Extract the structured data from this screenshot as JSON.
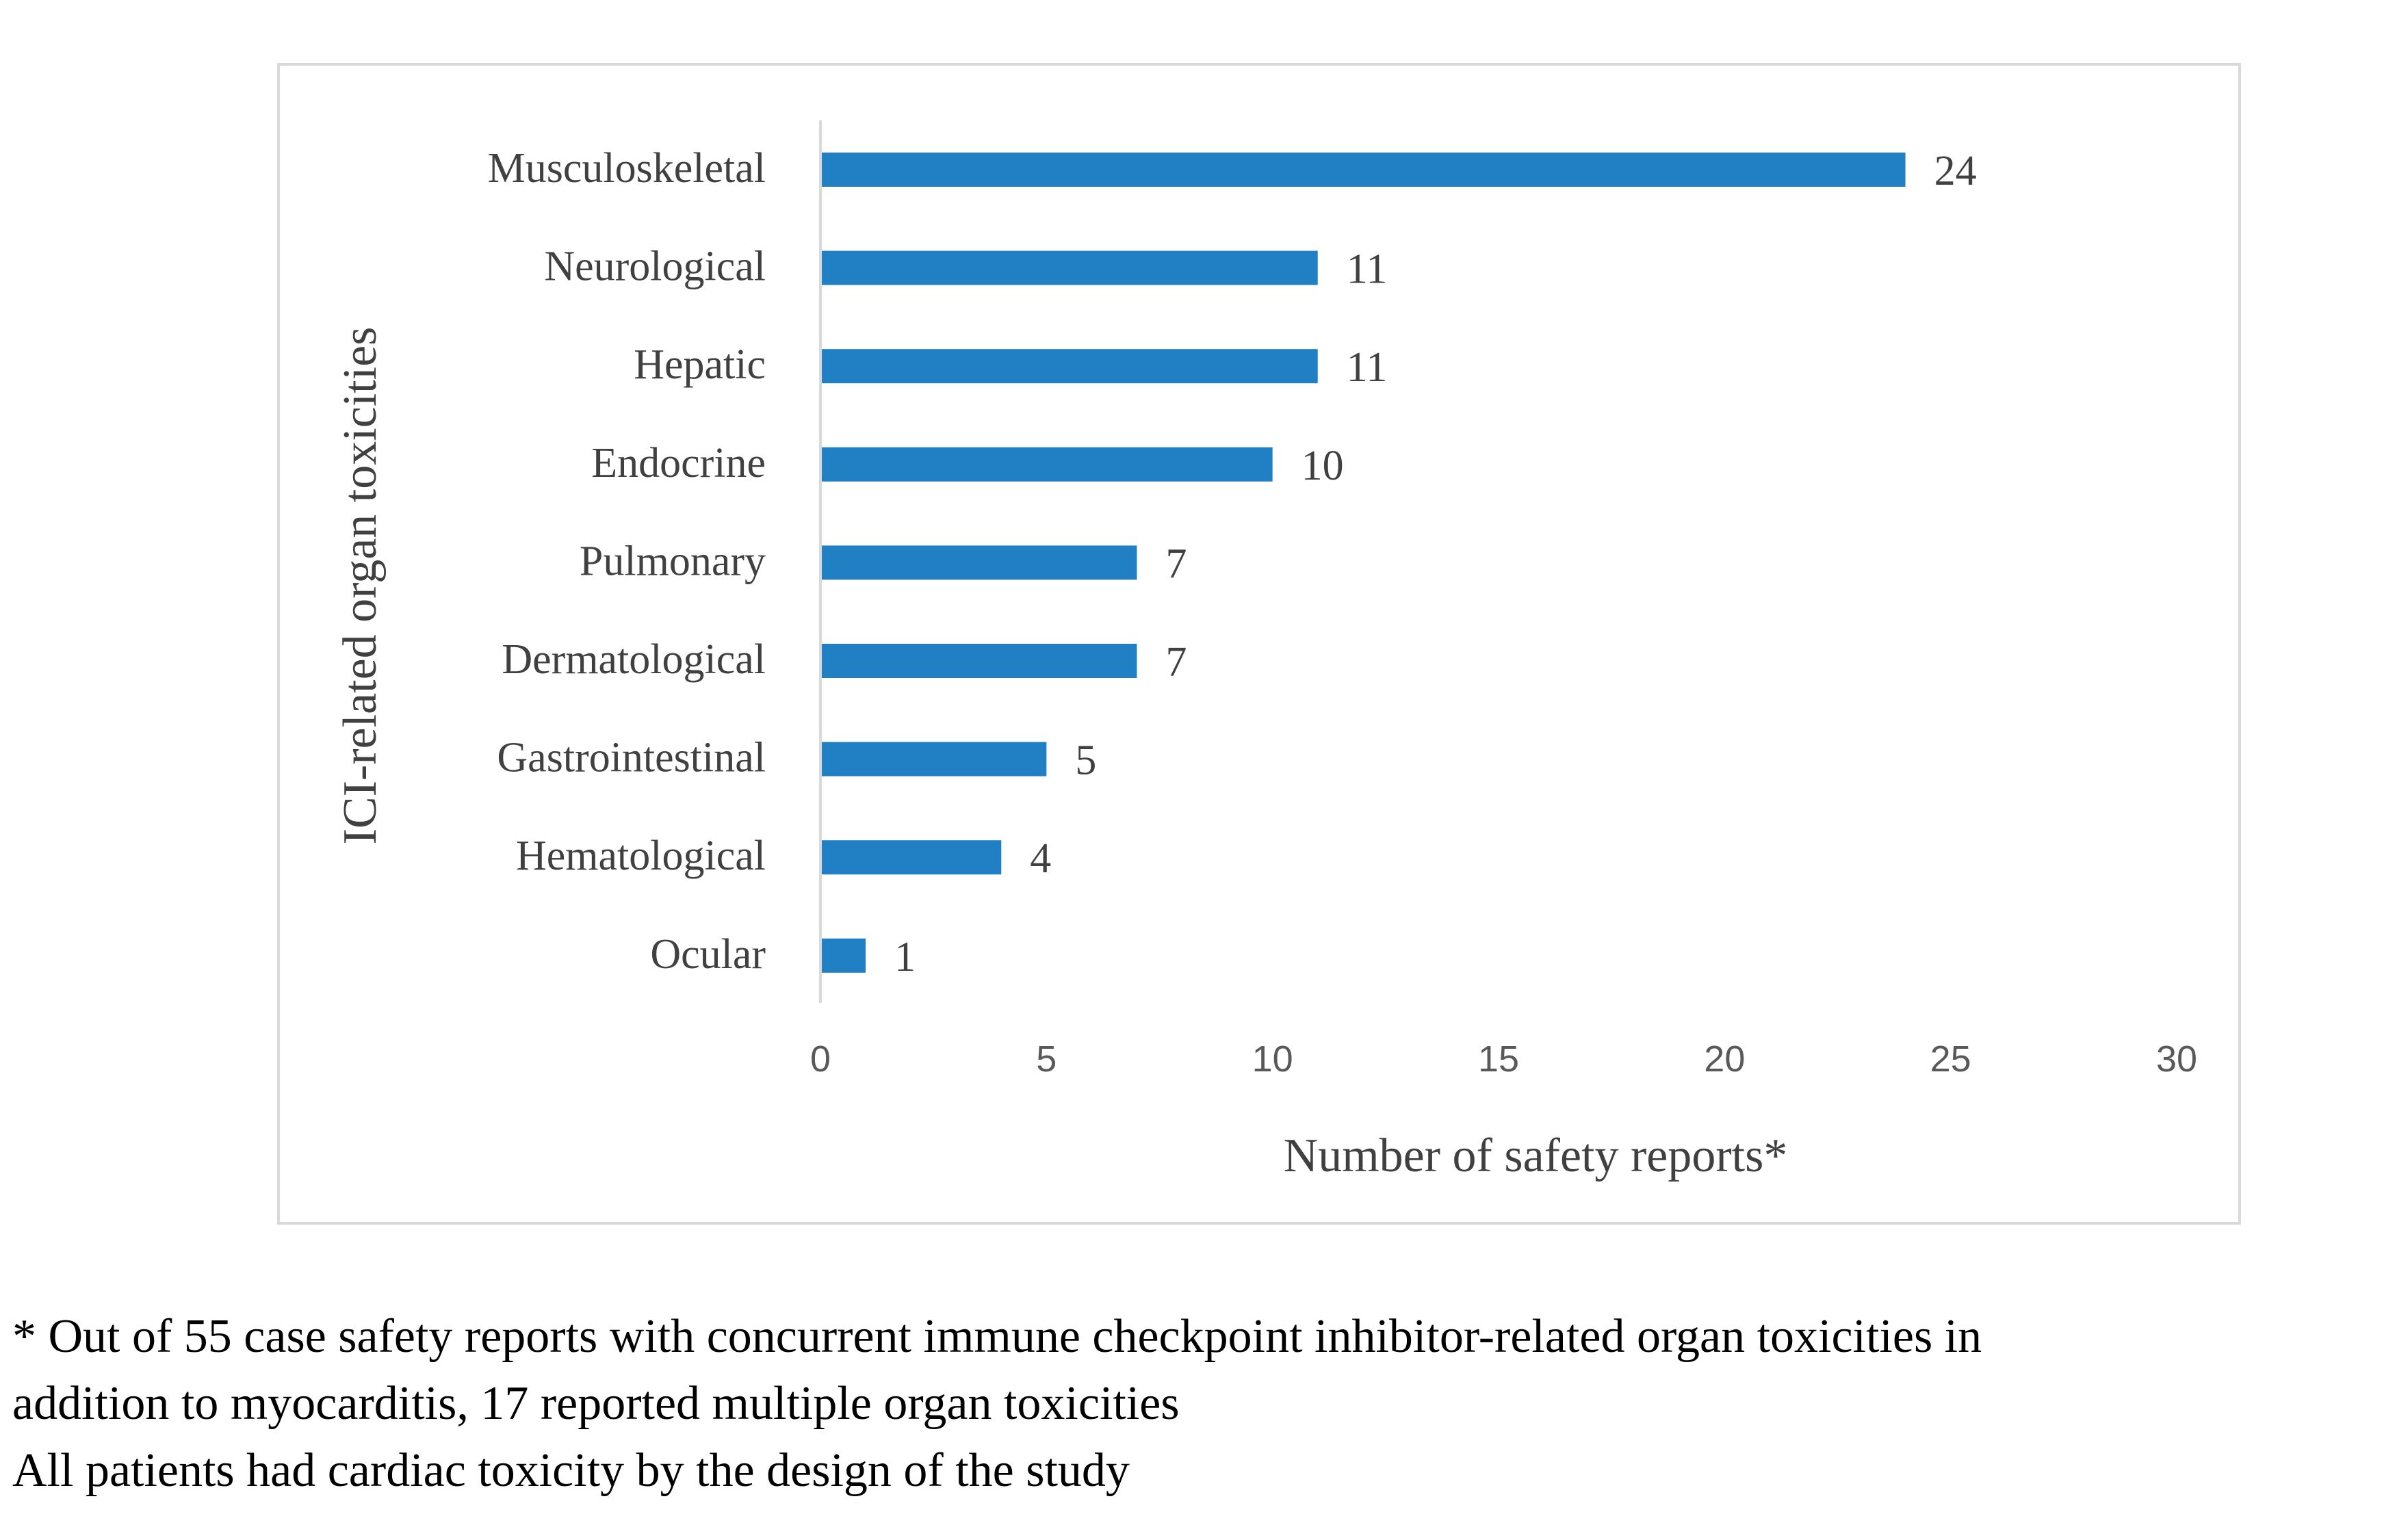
{
  "chart_data": {
    "type": "bar",
    "orientation": "horizontal",
    "categories": [
      "Musculoskeletal",
      "Neurological",
      "Hepatic",
      "Endocrine",
      "Pulmonary",
      "Dermatological",
      "Gastrointestinal",
      "Hematological",
      "Ocular"
    ],
    "values": [
      24,
      11,
      11,
      10,
      7,
      7,
      5,
      4,
      1
    ],
    "data_labels": [
      "24",
      "11",
      "11",
      "10",
      "7",
      "7",
      "5",
      "4",
      "1"
    ],
    "xlabel": "Number of safety reports*",
    "ylabel": "ICI-related organ toxicities",
    "xlim": [
      0,
      30
    ],
    "xticks": [
      0,
      5,
      10,
      15,
      20,
      25,
      30
    ],
    "xtick_labels": [
      "0",
      "5",
      "10",
      "15",
      "20",
      "25",
      "30"
    ],
    "grid": false,
    "legend": "none",
    "bar_color": "#2180c3"
  },
  "footnote": {
    "line1": "* Out of 55 case safety reports with concurrent immune checkpoint inhibitor-related organ toxicities in",
    "line2": "addition to myocarditis, 17 reported multiple organ toxicities",
    "line3": "All patients had cardiac toxicity by the design of the study"
  }
}
